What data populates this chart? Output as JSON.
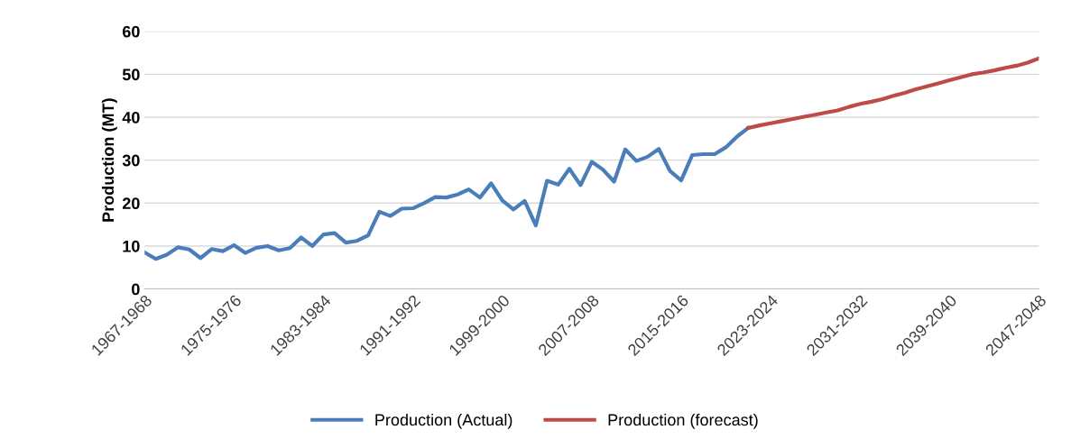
{
  "chart_data": {
    "type": "line",
    "ylabel": "Production (MT)",
    "categories": [
      "1967-1968",
      null,
      null,
      null,
      null,
      null,
      null,
      null,
      "1975-1976",
      null,
      null,
      null,
      null,
      null,
      null,
      null,
      "1983-1984",
      null,
      null,
      null,
      null,
      null,
      null,
      null,
      "1991-1992",
      null,
      null,
      null,
      null,
      null,
      null,
      null,
      "1999-2000",
      null,
      null,
      null,
      null,
      null,
      null,
      null,
      "2007-2008",
      null,
      null,
      null,
      null,
      null,
      null,
      null,
      "2015-2016",
      null,
      null,
      null,
      null,
      null,
      null,
      null,
      "2023-2024",
      null,
      null,
      null,
      null,
      null,
      null,
      null,
      "2031-2032",
      null,
      null,
      null,
      null,
      null,
      null,
      null,
      "2039-2040",
      null,
      null,
      null,
      null,
      null,
      null,
      null,
      "2047-2048"
    ],
    "series": [
      {
        "name": "Production (Actual)",
        "color": "#4a7ebb",
        "values": [
          8.5,
          7,
          8,
          9.7,
          9.2,
          7.2,
          9.3,
          8.8,
          10.2,
          8.4,
          9.6,
          10,
          9,
          9.5,
          12,
          10,
          12.7,
          13,
          10.8,
          11.2,
          12.5,
          18,
          17,
          18.7,
          18.8,
          20,
          21.4,
          21.3,
          22,
          23.2,
          21.3,
          24.6,
          20.6,
          18.5,
          20.5,
          14.8,
          25.2,
          24.3,
          28,
          24.2,
          29.6,
          27.8,
          25,
          32.5,
          29.8,
          30.8,
          32.6,
          27.5,
          25.3,
          31.2,
          31.4,
          31.4,
          33,
          35.5,
          37.5,
          null,
          null,
          null,
          null,
          null,
          null,
          null,
          null,
          null,
          null,
          null,
          null,
          null,
          null,
          null,
          null,
          null,
          null,
          null,
          null,
          null,
          null,
          null,
          null,
          null,
          null
        ]
      },
      {
        "name": "Production (forecast)",
        "color": "#be4b48",
        "values": [
          null,
          null,
          null,
          null,
          null,
          null,
          null,
          null,
          null,
          null,
          null,
          null,
          null,
          null,
          null,
          null,
          null,
          null,
          null,
          null,
          null,
          null,
          null,
          null,
          null,
          null,
          null,
          null,
          null,
          null,
          null,
          null,
          null,
          null,
          null,
          null,
          null,
          null,
          null,
          null,
          null,
          null,
          null,
          null,
          null,
          null,
          null,
          null,
          null,
          null,
          null,
          null,
          null,
          null,
          37.5,
          38.1,
          38.6,
          39.1,
          39.6,
          40.1,
          40.6,
          41.1,
          41.6,
          42.4,
          43.1,
          43.6,
          44.2,
          45,
          45.7,
          46.5,
          47.2,
          47.9,
          48.6,
          49.3,
          50,
          50.4,
          50.9,
          51.5,
          52,
          52.7,
          53.7
        ]
      }
    ],
    "ylim": [
      0,
      60
    ],
    "yticks": [
      0,
      10,
      20,
      30,
      40,
      50,
      60
    ],
    "grid": "y",
    "legend": "bottom",
    "line_style": "solid",
    "marker": "none"
  }
}
